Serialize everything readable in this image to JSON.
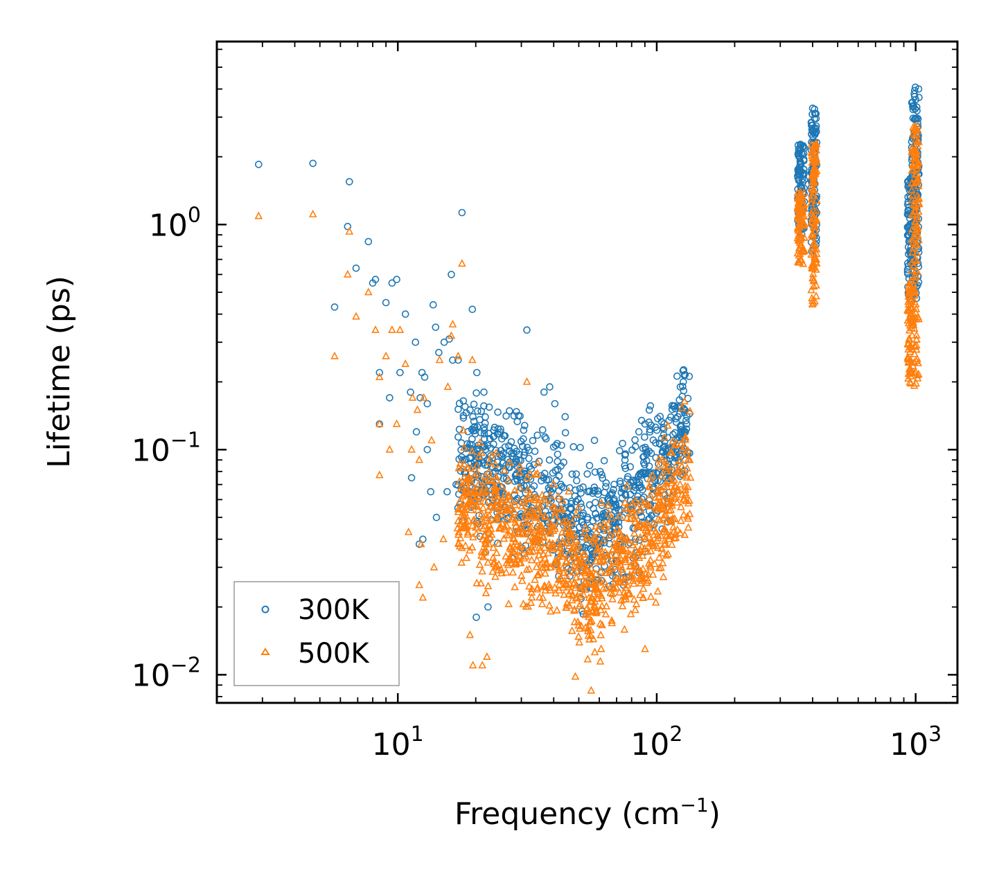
{
  "chart_data": {
    "type": "scatter",
    "title": "",
    "xlabel": "Frequency (cm",
    "xlabel_sup": "−1",
    "xlabel_end": ")",
    "ylabel": "Lifetime (ps)",
    "xscale": "log",
    "yscale": "log",
    "xlim": [
      2.0,
      1450
    ],
    "ylim": [
      0.0075,
      6.5
    ],
    "xticks": [
      {
        "value": 10,
        "base": "10",
        "exp": "1"
      },
      {
        "value": 100,
        "base": "10",
        "exp": "2"
      },
      {
        "value": 1000,
        "base": "10",
        "exp": "3"
      }
    ],
    "yticks": [
      {
        "value": 0.01,
        "base": "10",
        "exp": "−2"
      },
      {
        "value": 0.1,
        "base": "10",
        "exp": "−1"
      },
      {
        "value": 1,
        "base": "10",
        "exp": "0"
      }
    ],
    "legend": {
      "position": "lower-left"
    },
    "series": [
      {
        "name": "300K",
        "marker": "circle",
        "color": "#1f77b4",
        "points": [
          [
            2.9,
            1.85
          ],
          [
            4.7,
            1.87
          ],
          [
            6.5,
            1.55
          ],
          [
            6.4,
            0.98
          ],
          [
            7.7,
            0.84
          ],
          [
            6.9,
            0.64
          ],
          [
            5.7,
            0.43
          ],
          [
            8.2,
            0.57
          ],
          [
            8.0,
            0.55
          ],
          [
            9.5,
            0.55
          ],
          [
            9.9,
            0.57
          ],
          [
            10.7,
            0.4
          ],
          [
            9.0,
            0.45
          ],
          [
            8.5,
            0.22
          ],
          [
            10.2,
            0.22
          ],
          [
            9.3,
            0.17
          ],
          [
            8.5,
            0.13
          ],
          [
            11.2,
            0.18
          ],
          [
            11.7,
            0.3
          ],
          [
            12.7,
            0.21
          ],
          [
            13.0,
            0.16
          ],
          [
            12.4,
            0.22
          ],
          [
            11.8,
            0.12
          ],
          [
            12.2,
            0.17
          ],
          [
            13.7,
            0.44
          ],
          [
            14.0,
            0.35
          ],
          [
            14.4,
            0.27
          ],
          [
            15.1,
            0.3
          ],
          [
            15.8,
            0.31
          ],
          [
            16.3,
            0.25
          ],
          [
            17.1,
            0.25
          ],
          [
            17.7,
            1.13
          ],
          [
            16.1,
            0.6
          ],
          [
            19.4,
            0.42
          ],
          [
            19.0,
            0.15
          ],
          [
            20.2,
            0.22
          ],
          [
            21.5,
            0.18
          ],
          [
            13.0,
            0.1
          ],
          [
            11.3,
            0.075
          ],
          [
            14.1,
            0.05
          ],
          [
            12.5,
            0.04
          ],
          [
            13.4,
            0.065
          ],
          [
            12.1,
            0.038
          ],
          [
            15.5,
            0.065
          ],
          [
            16.8,
            0.07
          ],
          [
            18.1,
            0.09
          ],
          [
            19.5,
            0.14
          ],
          [
            20.1,
            0.018
          ],
          [
            22.3,
            0.02
          ],
          [
            21.8,
            0.035
          ],
          [
            23.2,
            0.06
          ],
          [
            31.5,
            0.34
          ],
          [
            36.7,
            0.18
          ],
          [
            38.6,
            0.19
          ],
          [
            40.4,
            0.16
          ],
          [
            44.3,
            0.14
          ],
          [
            57.5,
            0.11
          ],
          [
            85.3,
            0.12
          ],
          [
            90.1,
            0.13
          ],
          [
            93.6,
            0.15
          ],
          [
            110.2,
            0.1
          ],
          [
            125.4,
            0.12
          ],
          [
            130.5,
            0.13
          ],
          [
            113.0,
            0.075
          ],
          [
            97.5,
            0.068
          ],
          [
            75.4,
            0.09
          ],
          [
            62.7,
            0.048
          ],
          [
            54.4,
            0.065
          ]
        ],
        "clusters": [
          {
            "x": [
              17,
              135
            ],
            "y_of": "low",
            "count": 900
          },
          {
            "x": [
              350,
              372
            ],
            "y": [
              0.9,
              2.3
            ],
            "count": 90
          },
          {
            "x": [
              395,
              415
            ],
            "y": [
              0.75,
              3.3
            ],
            "count": 110
          },
          {
            "x": [
              930,
              960
            ],
            "y": [
              0.45,
              1.6
            ],
            "count": 60
          },
          {
            "x": [
              965,
              1030
            ],
            "y": [
              0.45,
              4.1
            ],
            "count": 150
          }
        ]
      },
      {
        "name": "500K",
        "marker": "triangle",
        "color": "#ff7f0e",
        "points": [
          [
            2.9,
            1.09
          ],
          [
            4.7,
            1.11
          ],
          [
            6.5,
            0.93
          ],
          [
            6.4,
            0.6
          ],
          [
            7.7,
            0.5
          ],
          [
            6.9,
            0.39
          ],
          [
            5.7,
            0.26
          ],
          [
            8.2,
            0.34
          ],
          [
            8.5,
            0.21
          ],
          [
            9.5,
            0.34
          ],
          [
            9.0,
            0.26
          ],
          [
            10.2,
            0.34
          ],
          [
            10.7,
            0.24
          ],
          [
            8.5,
            0.13
          ],
          [
            9.3,
            0.1
          ],
          [
            8.5,
            0.077
          ],
          [
            9.9,
            0.13
          ],
          [
            11.4,
            0.17
          ],
          [
            11.9,
            0.15
          ],
          [
            12.1,
            0.09
          ],
          [
            11.3,
            0.1
          ],
          [
            12.6,
            0.17
          ],
          [
            13.5,
            0.11
          ],
          [
            14.5,
            0.25
          ],
          [
            15.6,
            0.19
          ],
          [
            16.3,
            0.36
          ],
          [
            17.1,
            0.26
          ],
          [
            17.7,
            0.67
          ],
          [
            16.1,
            0.32
          ],
          [
            19.4,
            0.25
          ],
          [
            11.0,
            0.043
          ],
          [
            12.3,
            0.038
          ],
          [
            12.1,
            0.025
          ],
          [
            12.5,
            0.022
          ],
          [
            13.8,
            0.03
          ],
          [
            15.0,
            0.04
          ],
          [
            19.0,
            0.015
          ],
          [
            19.5,
            0.011
          ],
          [
            21.2,
            0.011
          ],
          [
            22.1,
            0.012
          ],
          [
            31.5,
            0.2
          ],
          [
            20.3,
            0.045
          ],
          [
            55.8,
            0.0085
          ],
          [
            48.5,
            0.0098
          ],
          [
            61.0,
            0.013
          ],
          [
            90.1,
            0.013
          ],
          [
            123.0,
            0.07
          ],
          [
            135.0,
            0.075
          ]
        ],
        "clusters": [
          {
            "x": [
              17,
              135
            ],
            "y_of": "low",
            "count": 1000
          },
          {
            "x": [
              350,
              372
            ],
            "y": [
              0.65,
              1.4
            ],
            "count": 90
          },
          {
            "x": [
              395,
              415
            ],
            "y": [
              0.42,
              2.3
            ],
            "count": 110
          },
          {
            "x": [
              930,
              960
            ],
            "y": [
              0.19,
              0.55
            ],
            "count": 60
          },
          {
            "x": [
              965,
              1030
            ],
            "y": [
              0.19,
              2.8
            ],
            "count": 150
          }
        ]
      }
    ]
  }
}
